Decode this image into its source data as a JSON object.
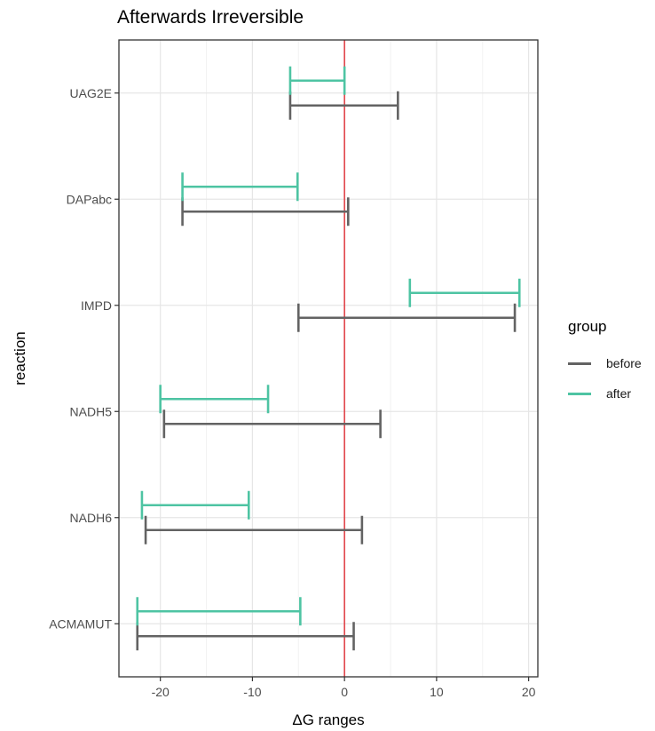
{
  "chart_data": {
    "type": "errorbar",
    "title": "Afterwards Irreversible",
    "xlabel": "ΔG ranges",
    "ylabel": "reaction",
    "xlim": [
      -24.5,
      21
    ],
    "xticks": [
      -20,
      -10,
      0,
      10,
      20
    ],
    "xtick_labels": [
      "-20",
      "-10",
      "0",
      "10",
      "20"
    ],
    "reference_line": {
      "x": 0,
      "color": "#e0383e"
    },
    "grid": true,
    "legend_title": "group",
    "legend_position": "right",
    "categories": [
      "UAG2E",
      "DAPabc",
      "IMPD",
      "NADH5",
      "NADH6",
      "ACMAMUT"
    ],
    "series": [
      {
        "name": "before",
        "color": "#636363",
        "ranges": [
          [
            -5.9,
            5.8
          ],
          [
            -17.6,
            0.4
          ],
          [
            -5.0,
            18.5
          ],
          [
            -19.6,
            3.9
          ],
          [
            -21.6,
            1.9
          ],
          [
            -22.5,
            1.0
          ]
        ]
      },
      {
        "name": "after",
        "color": "#4ec4a3",
        "ranges": [
          [
            -5.9,
            0.0
          ],
          [
            -17.6,
            -5.1
          ],
          [
            7.1,
            19.0
          ],
          [
            -20.0,
            -8.3
          ],
          [
            -22.0,
            -10.4
          ],
          [
            -22.5,
            -4.8
          ]
        ]
      }
    ]
  }
}
